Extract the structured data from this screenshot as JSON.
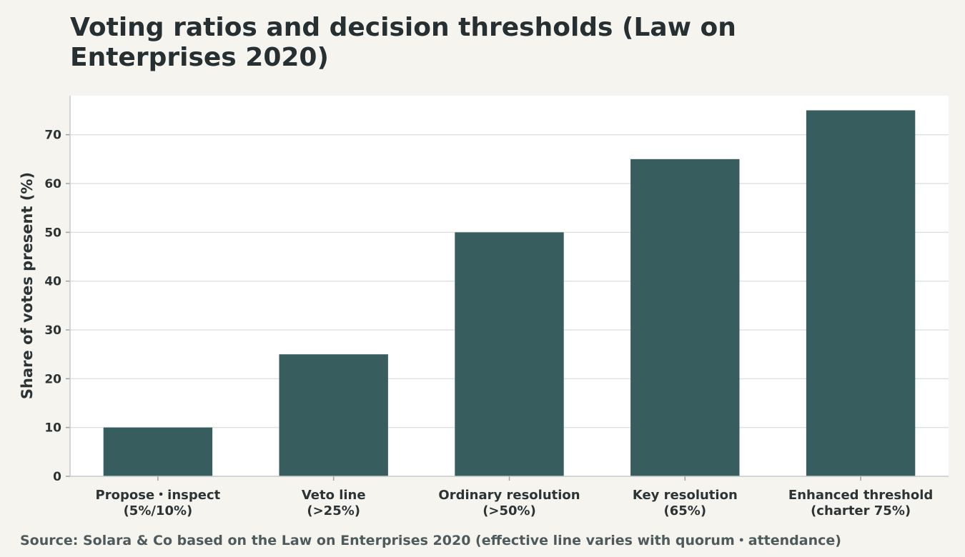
{
  "chart_data": {
    "type": "bar",
    "title": "Voting ratios and decision thresholds (Law on Enterprises 2020)",
    "xlabel": "",
    "ylabel": "Share of votes present (%)",
    "categories": [
      [
        "Propose・inspect",
        "(5%/10%)"
      ],
      [
        "Veto line",
        "(>25%)"
      ],
      [
        "Ordinary resolution",
        "(>50%)"
      ],
      [
        "Key resolution",
        "(65%)"
      ],
      [
        "Enhanced threshold",
        "(charter 75%)"
      ]
    ],
    "values": [
      10,
      25,
      50,
      65,
      75
    ],
    "ylim": [
      0,
      78
    ],
    "yticks": [
      0,
      10,
      20,
      30,
      40,
      50,
      60,
      70
    ],
    "grid": true,
    "bar_color": "#385d5f",
    "gridline_color": "#dde1e2",
    "plot_background": "#ffffff",
    "page_background": "#f5f4ef"
  },
  "source": "Source: Solara & Co based on the Law on Enterprises 2020 (effective line varies with quorum・attendance)"
}
